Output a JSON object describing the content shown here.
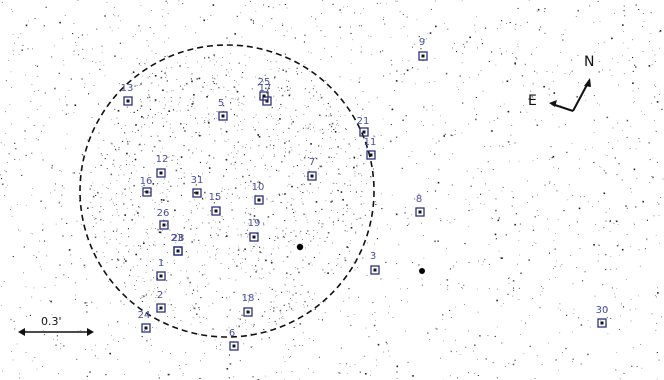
{
  "image": {
    "type": "astronomical star field with numbered source markers",
    "background": "#ffffff",
    "marker_color": "#2d3180",
    "label_color": "#4a4fa0"
  },
  "compass": {
    "north": "N",
    "east": "E"
  },
  "scale_bar": {
    "label": "0.3'"
  },
  "sources": [
    {
      "id": "1"
    },
    {
      "id": "2"
    },
    {
      "id": "3"
    },
    {
      "id": "5"
    },
    {
      "id": "6"
    },
    {
      "id": "7"
    },
    {
      "id": "8"
    },
    {
      "id": "9"
    },
    {
      "id": "10"
    },
    {
      "id": "11"
    },
    {
      "id": "12"
    },
    {
      "id": "13"
    },
    {
      "id": "15"
    },
    {
      "id": "16"
    },
    {
      "id": "17"
    },
    {
      "id": "18"
    },
    {
      "id": "19"
    },
    {
      "id": "21"
    },
    {
      "id": "23"
    },
    {
      "id": "24"
    },
    {
      "id": "25"
    },
    {
      "id": "26"
    },
    {
      "id": "28"
    },
    {
      "id": "30"
    },
    {
      "id": "31"
    }
  ]
}
